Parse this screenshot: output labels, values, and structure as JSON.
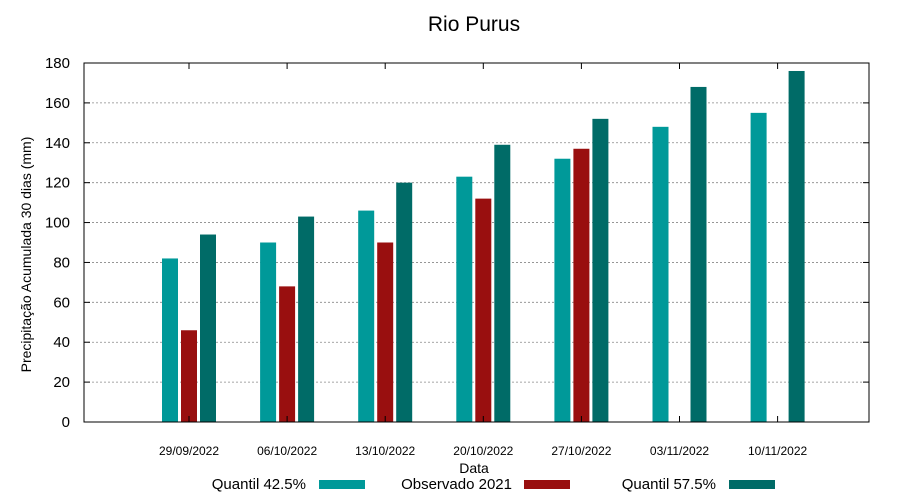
{
  "chart_data": {
    "type": "bar",
    "title": "Rio Purus",
    "xlabel": "Data",
    "ylabel": "Precipitação Acumulada 30 dias (mm)",
    "ylim": [
      0,
      180
    ],
    "yticks": [
      0,
      20,
      40,
      60,
      80,
      100,
      120,
      140,
      160,
      180
    ],
    "grid": true,
    "legend_position": "bottom",
    "categories": [
      "29/09/2022",
      "06/10/2022",
      "13/10/2022",
      "20/10/2022",
      "27/10/2022",
      "03/11/2022",
      "10/11/2022"
    ],
    "series": [
      {
        "name": "Quantil 42.5%",
        "color": "#009999",
        "values": [
          82,
          90,
          106,
          123,
          132,
          148,
          155
        ]
      },
      {
        "name": "Observado 2021",
        "color": "#990f0f",
        "values": [
          46,
          68,
          90,
          112,
          137,
          null,
          null
        ]
      },
      {
        "name": "Quantil 57.5%",
        "color": "#006b67",
        "values": [
          94,
          103,
          120,
          139,
          152,
          168,
          176
        ]
      }
    ]
  }
}
